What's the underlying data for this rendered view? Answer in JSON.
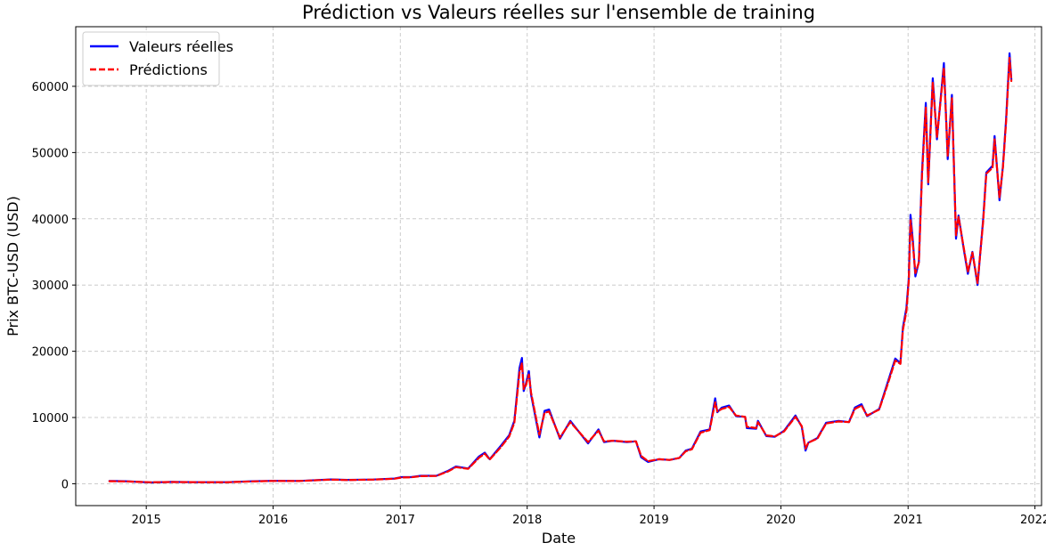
{
  "chart_data": {
    "type": "line",
    "title": "Prédiction vs Valeurs réelles sur l'ensemble de training",
    "xlabel": "Date",
    "ylabel": "Prix BTC-USD (USD)",
    "x_ticks": [
      "2015",
      "2016",
      "2017",
      "2018",
      "2019",
      "2020",
      "2021",
      "2022"
    ],
    "y_ticks": [
      "0",
      "10000",
      "20000",
      "30000",
      "40000",
      "50000",
      "60000"
    ],
    "xlim": [
      "2014-06-12",
      "2022-01-20"
    ],
    "ylim": [
      -3300,
      69000
    ],
    "grid": true,
    "legend": "upper left",
    "series": [
      {
        "name": "Valeurs réelles",
        "color": "#0000ff",
        "dashed": false,
        "x": [
          "2014-09-17",
          "2014-11-01",
          "2015-01-14",
          "2015-03-15",
          "2015-06-01",
          "2015-08-20",
          "2015-11-05",
          "2016-01-01",
          "2016-03-15",
          "2016-06-15",
          "2016-08-01",
          "2016-10-15",
          "2016-12-15",
          "2017-01-05",
          "2017-02-01",
          "2017-03-01",
          "2017-04-15",
          "2017-05-20",
          "2017-06-10",
          "2017-07-15",
          "2017-08-15",
          "2017-09-01",
          "2017-09-15",
          "2017-10-15",
          "2017-11-10",
          "2017-11-25",
          "2017-12-10",
          "2017-12-17",
          "2017-12-22",
          "2017-12-28",
          "2018-01-06",
          "2018-01-12",
          "2018-02-05",
          "2018-02-20",
          "2018-03-05",
          "2018-04-05",
          "2018-05-05",
          "2018-06-25",
          "2018-07-25",
          "2018-08-10",
          "2018-09-05",
          "2018-10-15",
          "2018-11-10",
          "2018-11-25",
          "2018-12-15",
          "2019-01-15",
          "2019-02-15",
          "2019-03-15",
          "2019-04-02",
          "2019-04-20",
          "2019-05-15",
          "2019-06-10",
          "2019-06-26",
          "2019-07-02",
          "2019-07-15",
          "2019-08-05",
          "2019-08-25",
          "2019-09-20",
          "2019-09-25",
          "2019-10-22",
          "2019-10-27",
          "2019-11-20",
          "2019-12-15",
          "2020-01-10",
          "2020-02-12",
          "2020-03-01",
          "2020-03-12",
          "2020-03-20",
          "2020-04-15",
          "2020-05-10",
          "2020-06-15",
          "2020-07-15",
          "2020-08-01",
          "2020-08-20",
          "2020-09-05",
          "2020-10-10",
          "2020-11-05",
          "2020-11-25",
          "2020-12-10",
          "2020-12-17",
          "2020-12-27",
          "2021-01-03",
          "2021-01-08",
          "2021-01-15",
          "2021-01-22",
          "2021-02-01",
          "2021-02-10",
          "2021-02-21",
          "2021-02-28",
          "2021-03-13",
          "2021-03-25",
          "2021-04-14",
          "2021-04-25",
          "2021-05-07",
          "2021-05-19",
          "2021-05-26",
          "2021-06-10",
          "2021-06-22",
          "2021-07-05",
          "2021-07-20",
          "2021-08-05",
          "2021-08-14",
          "2021-09-01",
          "2021-09-07",
          "2021-09-21",
          "2021-10-01",
          "2021-10-10",
          "2021-10-20",
          "2021-10-25"
        ],
        "y": [
          420,
          380,
          200,
          270,
          230,
          230,
          380,
          430,
          420,
          650,
          580,
          640,
          780,
          1000,
          1000,
          1200,
          1200,
          2000,
          2600,
          2300,
          4100,
          4700,
          3700,
          5600,
          7300,
          9500,
          17500,
          19000,
          14000,
          15000,
          17000,
          13500,
          7000,
          11000,
          11200,
          6800,
          9500,
          6100,
          8200,
          6300,
          6500,
          6300,
          6400,
          4000,
          3300,
          3700,
          3600,
          3900,
          5000,
          5300,
          7900,
          8200,
          12900,
          10800,
          11500,
          11800,
          10200,
          10100,
          8400,
          8300,
          9500,
          7200,
          7100,
          8000,
          10300,
          8600,
          5000,
          6200,
          6900,
          9200,
          9500,
          9300,
          11500,
          12000,
          10200,
          11300,
          15600,
          18900,
          18200,
          23600,
          26500,
          31000,
          40600,
          36500,
          31300,
          33500,
          47000,
          57500,
          45200,
          61200,
          52000,
          63500,
          49000,
          58700,
          37000,
          40500,
          35500,
          31700,
          35000,
          30000,
          40000,
          47000,
          48000,
          52500,
          42800,
          48000,
          55000,
          65000,
          61000
        ]
      },
      {
        "name": "Prédictions",
        "color": "#ff0000",
        "dashed": true,
        "x": [
          "2014-09-17",
          "2014-11-01",
          "2015-01-14",
          "2015-03-15",
          "2015-06-01",
          "2015-08-20",
          "2015-11-05",
          "2016-01-01",
          "2016-03-15",
          "2016-06-15",
          "2016-08-01",
          "2016-10-15",
          "2016-12-15",
          "2017-01-05",
          "2017-02-01",
          "2017-03-01",
          "2017-04-15",
          "2017-05-20",
          "2017-06-10",
          "2017-07-15",
          "2017-08-15",
          "2017-09-01",
          "2017-09-15",
          "2017-10-15",
          "2017-11-10",
          "2017-11-25",
          "2017-12-10",
          "2017-12-17",
          "2017-12-22",
          "2017-12-28",
          "2018-01-06",
          "2018-01-12",
          "2018-02-05",
          "2018-02-20",
          "2018-03-05",
          "2018-04-05",
          "2018-05-05",
          "2018-06-25",
          "2018-07-25",
          "2018-08-10",
          "2018-09-05",
          "2018-10-15",
          "2018-11-10",
          "2018-11-25",
          "2018-12-15",
          "2019-01-15",
          "2019-02-15",
          "2019-03-15",
          "2019-04-02",
          "2019-04-20",
          "2019-05-15",
          "2019-06-10",
          "2019-06-26",
          "2019-07-02",
          "2019-07-15",
          "2019-08-05",
          "2019-08-25",
          "2019-09-20",
          "2019-09-25",
          "2019-10-22",
          "2019-10-27",
          "2019-11-20",
          "2019-12-15",
          "2020-01-10",
          "2020-02-12",
          "2020-03-01",
          "2020-03-12",
          "2020-03-20",
          "2020-04-15",
          "2020-05-10",
          "2020-06-15",
          "2020-07-15",
          "2020-08-01",
          "2020-08-20",
          "2020-09-05",
          "2020-10-10",
          "2020-11-05",
          "2020-11-25",
          "2020-12-10",
          "2020-12-17",
          "2020-12-27",
          "2021-01-03",
          "2021-01-08",
          "2021-01-15",
          "2021-01-22",
          "2021-02-01",
          "2021-02-10",
          "2021-02-21",
          "2021-02-28",
          "2021-03-13",
          "2021-03-25",
          "2021-04-14",
          "2021-04-25",
          "2021-05-07",
          "2021-05-19",
          "2021-05-26",
          "2021-06-10",
          "2021-06-22",
          "2021-07-05",
          "2021-07-20",
          "2021-08-05",
          "2021-08-14",
          "2021-09-01",
          "2021-09-07",
          "2021-09-21",
          "2021-10-01",
          "2021-10-10",
          "2021-10-20",
          "2021-10-25"
        ],
        "y": [
          380,
          350,
          220,
          260,
          240,
          220,
          360,
          420,
          410,
          630,
          560,
          620,
          760,
          950,
          980,
          1150,
          1180,
          1900,
          2500,
          2250,
          3900,
          4550,
          3650,
          5400,
          7100,
          9200,
          16800,
          18200,
          14300,
          14800,
          16500,
          13800,
          7400,
          10700,
          10900,
          7000,
          9300,
          6300,
          8000,
          6400,
          6500,
          6350,
          6400,
          4200,
          3400,
          3700,
          3600,
          3900,
          4900,
          5200,
          7700,
          8100,
          12300,
          10900,
          11300,
          11600,
          10300,
          10100,
          8600,
          8400,
          9300,
          7300,
          7150,
          7900,
          10100,
          8700,
          5300,
          6200,
          6800,
          9100,
          9400,
          9300,
          11300,
          11800,
          10300,
          11200,
          15300,
          18600,
          18100,
          23200,
          26000,
          30600,
          39800,
          36000,
          31800,
          33400,
          46400,
          56800,
          45500,
          60600,
          52300,
          62800,
          49500,
          58200,
          37500,
          40300,
          35700,
          32000,
          34900,
          30300,
          39600,
          46800,
          47700,
          52000,
          43200,
          47800,
          54600,
          64300,
          60800
        ]
      }
    ]
  }
}
